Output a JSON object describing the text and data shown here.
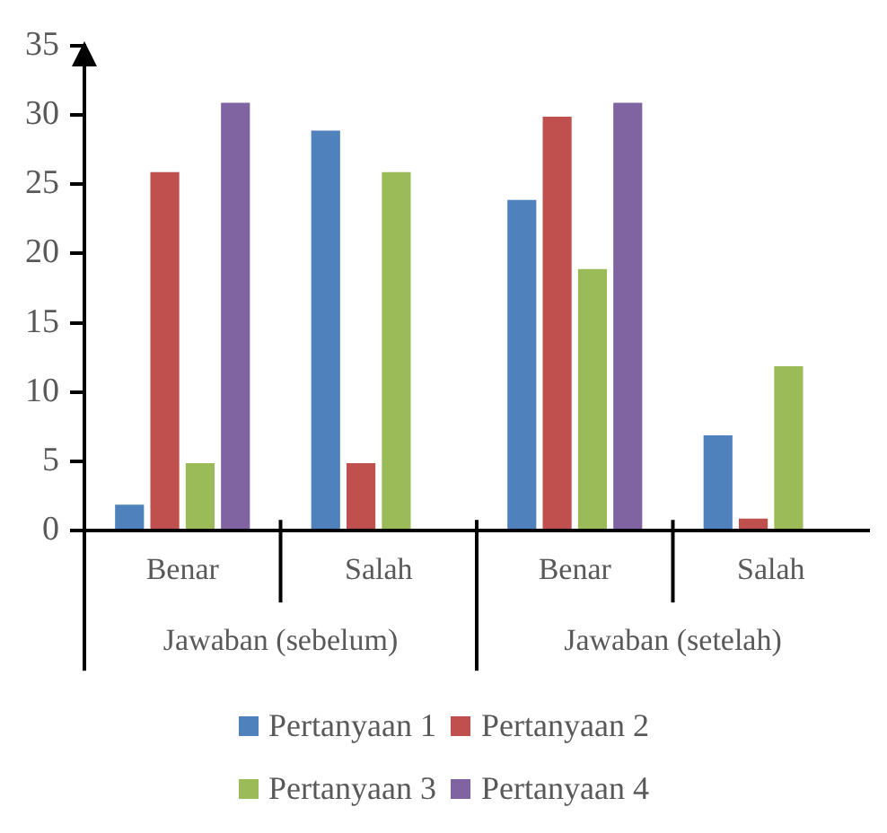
{
  "chart_data": {
    "type": "bar",
    "categories": [
      "Benar",
      "Salah",
      "Benar",
      "Salah"
    ],
    "series": [
      {
        "name": "Pertanyaan 1",
        "color": "#4f81bd",
        "values": [
          2,
          29,
          24,
          7
        ]
      },
      {
        "name": "Pertanyaan 2",
        "color": "#c0504d",
        "values": [
          26,
          5,
          30,
          1
        ]
      },
      {
        "name": "Pertanyaan 3",
        "color": "#9bbb59",
        "values": [
          5,
          26,
          19,
          12
        ]
      },
      {
        "name": "Pertanyaan 4",
        "color": "#8064a2",
        "values": [
          31,
          null,
          31,
          null
        ]
      }
    ],
    "annotations": [
      "Jawaban (sebelum)",
      "Jawaban (setelah)"
    ],
    "ylim": [
      0,
      35
    ],
    "yticks": [
      0,
      5,
      10,
      15,
      20,
      25,
      30,
      35
    ],
    "grid": false,
    "legend": "bottom"
  }
}
